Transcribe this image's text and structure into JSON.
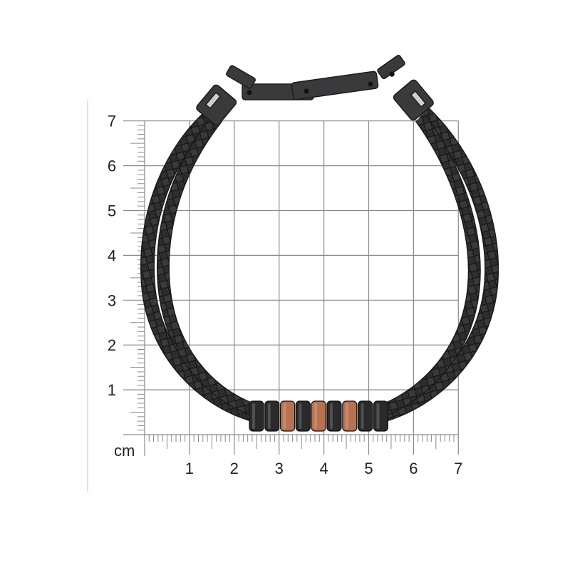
{
  "ruler": {
    "unit": "cm",
    "x_labels": [
      "1",
      "2",
      "3",
      "4",
      "5",
      "6",
      "7"
    ],
    "y_labels": [
      "1",
      "2",
      "3",
      "4",
      "5",
      "6",
      "7"
    ],
    "grid_color": "#8a8a8a"
  },
  "product": {
    "strand_color": "#2b2b2b",
    "bead_colors": [
      "#2a2a2a",
      "#2a2a2a",
      "#b8724f",
      "#2a2a2a",
      "#b8724f",
      "#2a2a2a",
      "#b8724f",
      "#2a2a2a",
      "#2a2a2a"
    ],
    "clasp_color": "#3a3a3c"
  }
}
